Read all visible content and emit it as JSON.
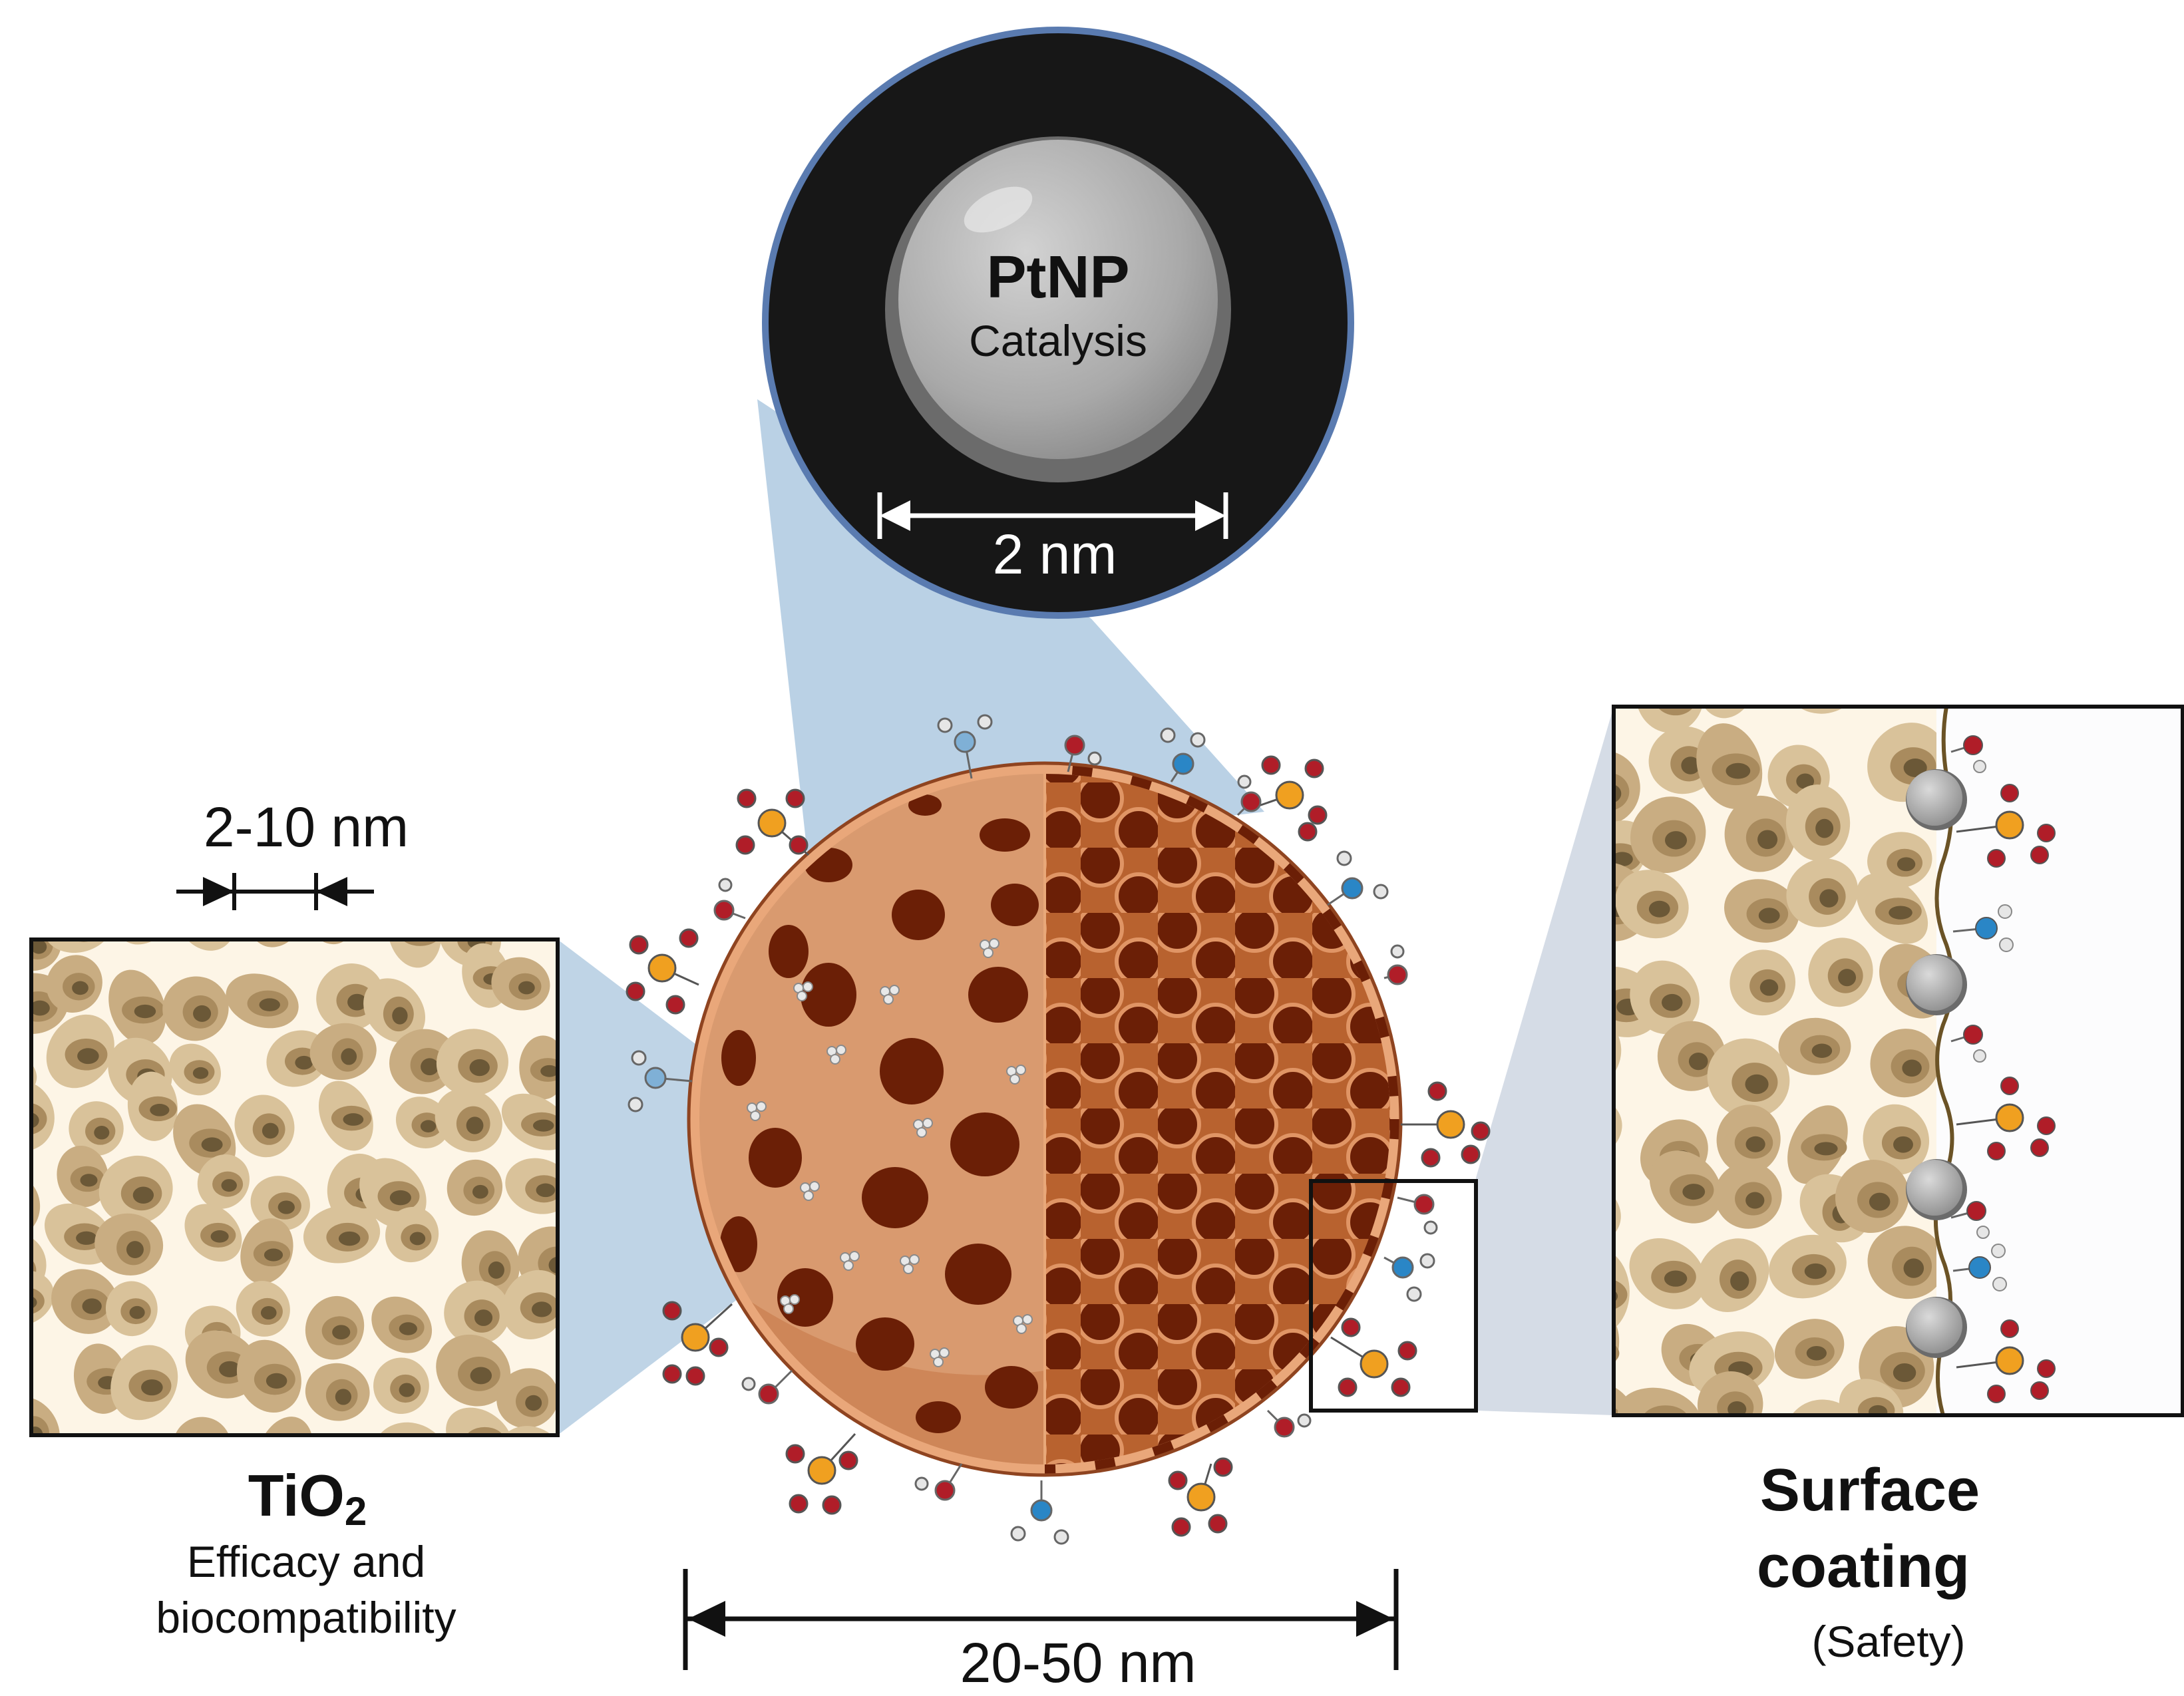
{
  "pt": {
    "title": "PtNP",
    "subtitle": "Catalysis",
    "size_label": "2 nm"
  },
  "tio2": {
    "title": "TiO",
    "title_sub": "2",
    "line1": "Efficacy and",
    "line2": "biocompatibility",
    "pore_label": "2-10 nm"
  },
  "particle": {
    "size_label": "20-50 nm"
  },
  "coating": {
    "line1": "Surface",
    "line2": "coating",
    "note": "(Safety)"
  },
  "colors": {
    "callout": "#a9c6de",
    "callout_gray": "#c7d0dd",
    "dark_circle": "#171717",
    "pt_sphere": "#a9a9a9",
    "shell_light": "#d99a6f",
    "shell_dark": "#a85a30",
    "pore_dark": "#6b1f06",
    "tio2_bg": "#fdf5e6",
    "tio2_blob": "#c9ad82",
    "tio2_hole": "#6b5837",
    "oxygen": "#b01d28",
    "phosphorus": "#f0a020",
    "nitrogen": "#2a86c6",
    "hydrogen": "#e6e6e6",
    "membrane": "#6b5326"
  }
}
